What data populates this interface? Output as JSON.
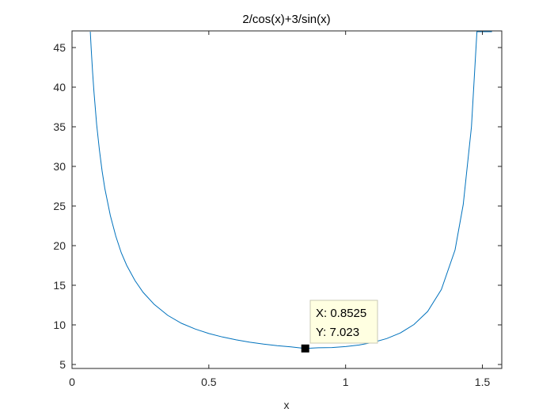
{
  "chart_data": {
    "type": "line",
    "title": "2/cos(x)+3/sin(x)",
    "xlabel": "x",
    "ylabel": "",
    "xlim": [
      0,
      1.5708
    ],
    "ylim": [
      4.5,
      47.1
    ],
    "xticks": [
      0,
      0.5,
      1,
      1.5
    ],
    "xtick_labels": [
      "0",
      "0.5",
      "1",
      "1.5"
    ],
    "yticks": [
      5,
      10,
      15,
      20,
      25,
      30,
      35,
      40,
      45
    ],
    "ytick_labels": [
      "5",
      "10",
      "15",
      "20",
      "25",
      "30",
      "35",
      "40",
      "45"
    ],
    "grid": false,
    "series": [
      {
        "color": "#0072BD",
        "x": [
          0.0668,
          0.07,
          0.075,
          0.08,
          0.09,
          0.1,
          0.11,
          0.12,
          0.14,
          0.16,
          0.18,
          0.2,
          0.23,
          0.26,
          0.3,
          0.35,
          0.4,
          0.45,
          0.5,
          0.55,
          0.6,
          0.65,
          0.7,
          0.75,
          0.8,
          0.8525,
          0.9,
          0.95,
          1.0,
          1.05,
          1.1,
          1.15,
          1.2,
          1.25,
          1.3,
          1.35,
          1.4,
          1.43,
          1.46,
          1.48,
          1.5,
          1.51,
          1.52,
          1.525,
          1.53,
          1.535
        ],
        "y": [
          47.0,
          44.9,
          42.0,
          39.5,
          35.3,
          32.1,
          29.4,
          27.2,
          23.8,
          21.2,
          19.1,
          17.5,
          15.6,
          14.1,
          12.6,
          11.2,
          10.2,
          9.48,
          8.91,
          8.47,
          8.11,
          7.81,
          7.57,
          7.38,
          7.23,
          7.023,
          7.11,
          7.14,
          7.26,
          7.46,
          7.79,
          8.27,
          8.98,
          10.05,
          11.7,
          14.46,
          19.45,
          25.2,
          35.0,
          47.0,
          47.0,
          47.0,
          47.0,
          47.0,
          47.0,
          47.0
        ]
      }
    ],
    "datatip": {
      "x": 0.8525,
      "y": 7.023,
      "label_x": "X: 0.8525",
      "label_y": "Y: 7.023"
    }
  }
}
